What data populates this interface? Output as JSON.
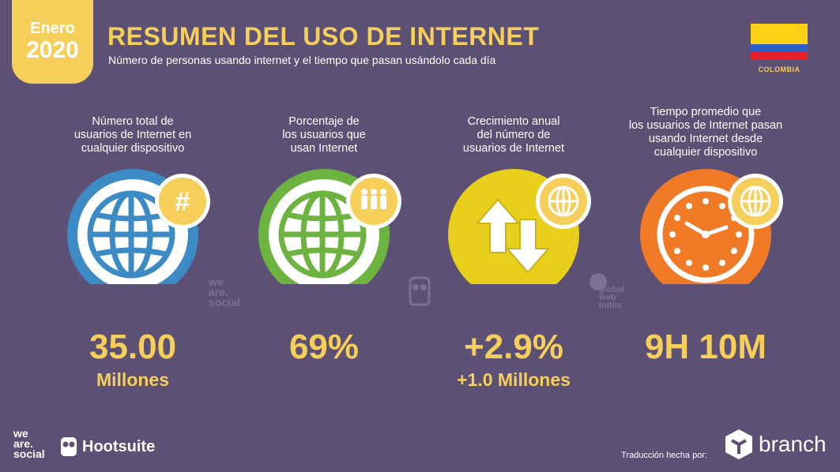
{
  "header": {
    "badge_month": "Enero",
    "badge_year": "2020",
    "title": "RESUMEN DEL USO DE INTERNET",
    "subtitle": "Número de personas usando internet y el tiempo que pasan usándolo cada día",
    "country": "COLOMBIA"
  },
  "stats": [
    {
      "label": "Número total de\nusuarios de Internet en\ncualquier dispositivo",
      "value": "35.00",
      "sub": "Millones",
      "icon": "globe-hash-icon",
      "color": "#3d8bc4"
    },
    {
      "label": "Porcentaje de\nlos usuarios que\nusan Internet",
      "value": "69%",
      "sub": "",
      "icon": "globe-people-icon",
      "color": "#6db33f"
    },
    {
      "label": "Crecimiento anual\ndel número de\nusuarios de Internet",
      "value": "+2.9%",
      "sub": "+1.0 Millones",
      "icon": "arrows-globe-icon",
      "color": "#e8cf1c"
    },
    {
      "label": "Tiempo promedio que\nlos usuarios de Internet pasan\nusando Internet desde\ncualquier dispositivo",
      "value": "9H 10M",
      "sub": "",
      "icon": "clock-globe-icon",
      "color": "#f07a26"
    }
  ],
  "watermarks": {
    "was": "we\nare.\nsocial",
    "gwi": "global\nweb\nindex"
  },
  "footer": {
    "was_logo": "we\nare.\nsocial",
    "hootsuite": "Hootsuite",
    "credit": "Traducción hecha por:",
    "branch": "branch"
  },
  "colors": {
    "background": "#5c5075",
    "accent": "#f6cf5a"
  }
}
